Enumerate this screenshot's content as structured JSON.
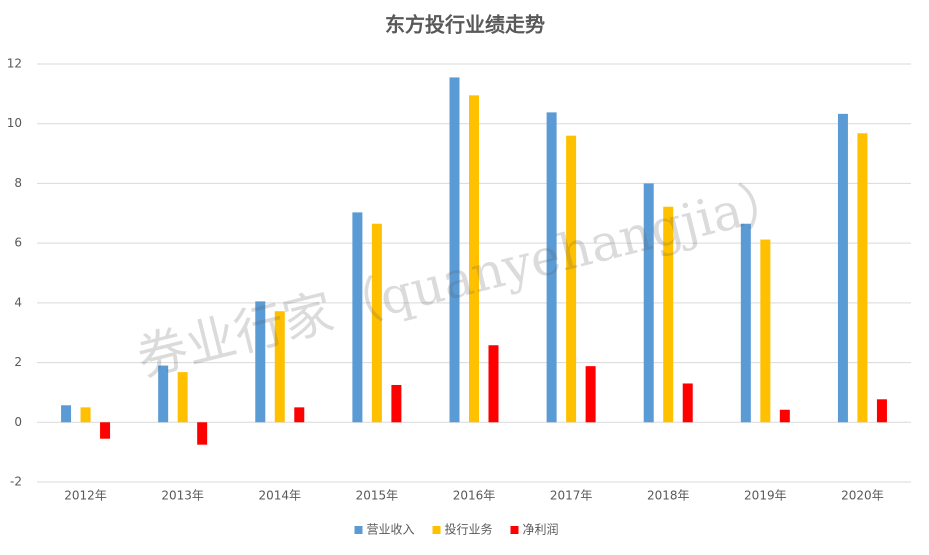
{
  "chart_data": {
    "type": "bar",
    "title": "东方投行业绩走势",
    "watermark": "券业行家（quanyehangjia）",
    "categories": [
      "2012年",
      "2013年",
      "2014年",
      "2015年",
      "2016年",
      "2017年",
      "2018年",
      "2019年",
      "2020年"
    ],
    "series": [
      {
        "name": "营业收入",
        "color": "#5b9bd5",
        "values": [
          0.57,
          1.9,
          4.05,
          7.03,
          11.55,
          10.38,
          8.0,
          6.65,
          10.33
        ]
      },
      {
        "name": "投行业务",
        "color": "#ffc000",
        "values": [
          0.5,
          1.68,
          3.72,
          6.65,
          10.95,
          9.6,
          7.22,
          6.12,
          9.68
        ]
      },
      {
        "name": "净利润",
        "color": "#ff0000",
        "values": [
          -0.55,
          -0.75,
          0.5,
          1.25,
          2.58,
          1.88,
          1.3,
          0.42,
          0.77
        ]
      }
    ],
    "ylim": [
      -2,
      12
    ],
    "yticks": [
      -2,
      0,
      2,
      4,
      6,
      8,
      10,
      12
    ],
    "grid": true,
    "legend": "bottom"
  }
}
